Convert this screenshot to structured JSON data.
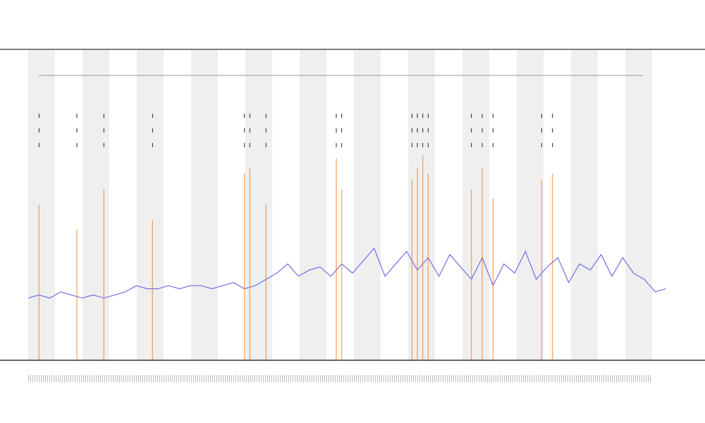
{
  "chart_data": {
    "type": "line",
    "x": [
      0,
      2,
      4,
      6,
      8,
      10,
      12,
      14,
      16,
      18,
      20,
      22,
      24,
      26,
      28,
      30,
      32,
      34,
      36,
      38,
      40,
      42,
      44,
      46,
      48,
      50,
      52,
      54,
      56,
      58,
      60,
      62,
      64,
      66,
      68,
      70,
      72,
      74,
      76,
      78,
      80,
      82,
      84,
      86,
      88,
      90,
      92,
      94,
      96,
      98,
      100,
      102,
      104,
      106,
      108,
      110,
      112,
      114,
      116,
      118
    ],
    "xlim": [
      0,
      120
    ],
    "ylim": [
      0,
      100
    ],
    "series": [
      {
        "color": "#6f6fe8",
        "values": [
          20,
          21,
          20,
          22,
          21,
          20,
          21,
          20,
          21,
          22,
          24,
          23,
          23,
          24,
          23,
          24,
          24,
          23,
          24,
          25,
          23,
          24,
          26,
          28,
          31,
          27,
          29,
          30,
          27,
          31,
          28,
          32,
          36,
          27,
          31,
          35,
          29,
          33,
          27,
          34,
          30,
          26,
          33,
          24,
          31,
          28,
          35,
          26,
          30,
          33,
          25,
          31,
          29,
          34,
          27,
          33,
          28,
          26,
          22,
          23
        ]
      },
      {
        "type": "spikes",
        "color": "#f07a20",
        "x": [
          2,
          9,
          14,
          23,
          40,
          41,
          44,
          57,
          58,
          71,
          72,
          73,
          74,
          82,
          84,
          86,
          95,
          97
        ],
        "values": [
          50,
          42,
          55,
          45,
          60,
          62,
          50,
          65,
          55,
          58,
          62,
          66,
          60,
          55,
          62,
          52,
          58,
          60
        ]
      }
    ]
  }
}
